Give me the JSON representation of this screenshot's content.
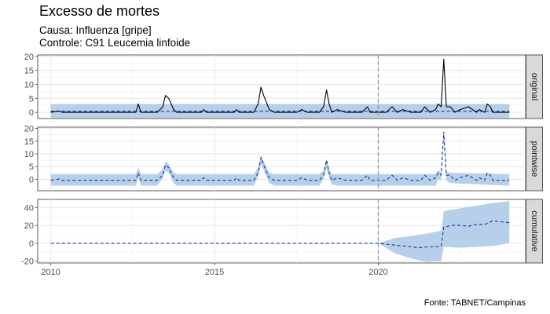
{
  "chart": {
    "title": "Excesso de mortes",
    "subtitle_line1": "Causa: Influenza [gripe]",
    "subtitle_line2": "Controle: C91 Leucemia linfoide",
    "caption": "Fonte: TABNET/Campinas"
  },
  "colors": {
    "ribbon": "#b3cde9",
    "observed": "#000000",
    "predicted": "#1c2f9e",
    "grid_major": "#e6e6e6",
    "grid_minor": "#f2f2f2",
    "strip_bg": "#d9d9d9",
    "strip_border": "#333333",
    "intervention_line": "#999999"
  },
  "chart_data": {
    "type": "line",
    "x_axis": {
      "ticks": [
        2010,
        2015,
        2020
      ],
      "range": [
        2009.6,
        2024.5
      ]
    },
    "intervention_x": 2020.0,
    "panels": [
      {
        "strip": "original",
        "y_ticks": [
          0,
          5,
          10,
          15,
          20
        ],
        "ylim": [
          -2.2,
          20.5
        ],
        "series": [
          {
            "kind": "band",
            "x": [
              2010.0,
              2024.0
            ],
            "lower": [
              -2.0,
              -2.0
            ],
            "upper": [
              3.0,
              3.0
            ]
          },
          {
            "kind": "dashed-line",
            "x": [
              2010.0,
              2024.0
            ],
            "y": [
              0.4,
              0.4
            ]
          },
          {
            "kind": "solid-line",
            "x": [
              2010.0,
              2010.25,
              2010.35,
              2010.5,
              2012.6,
              2012.67,
              2012.75,
              2013.25,
              2013.42,
              2013.5,
              2013.6,
              2013.75,
              2013.85,
              2014.0,
              2014.6,
              2014.67,
              2014.75,
              2015.0,
              2015.6,
              2015.67,
              2015.75,
              2016.2,
              2016.33,
              2016.42,
              2016.5,
              2016.67,
              2016.83,
              2017.0,
              2017.5,
              2017.67,
              2017.83,
              2018.2,
              2018.33,
              2018.42,
              2018.5,
              2018.58,
              2018.75,
              2019.0,
              2019.5,
              2019.58,
              2019.67,
              2019.75,
              2019.85,
              2020.0,
              2020.25,
              2020.33,
              2020.42,
              2020.58,
              2020.75,
              2021.0,
              2021.3,
              2021.42,
              2021.5,
              2021.58,
              2021.75,
              2021.83,
              2021.92,
              2022.0,
              2022.08,
              2022.2,
              2022.33,
              2022.5,
              2022.75,
              2023.0,
              2023.08,
              2023.25,
              2023.33,
              2023.42,
              2023.5,
              2023.58,
              2023.75,
              2024.0
            ],
            "y": [
              0,
              0.5,
              0,
              0,
              0,
              3,
              0,
              0,
              2,
              6,
              5,
              1,
              0,
              0,
              0,
              1,
              0,
              0,
              0,
              1,
              0,
              0,
              3,
              9,
              6,
              1,
              0,
              0,
              0,
              1,
              0,
              0,
              2,
              8,
              3,
              0,
              1,
              0,
              0,
              1,
              2,
              0,
              0,
              0,
              0,
              1,
              2,
              0,
              1,
              0,
              0,
              2,
              1,
              0,
              1,
              3,
              2,
              19,
              2,
              2,
              0,
              1,
              2,
              0,
              1,
              0,
              3,
              2,
              0,
              0,
              0,
              0
            ]
          }
        ]
      },
      {
        "strip": "pointwise",
        "y_ticks": [
          0,
          5,
          10,
          15,
          20
        ],
        "ylim": [
          -4.5,
          20.5
        ],
        "series": [
          {
            "kind": "band",
            "x": [
              2010.0,
              2012.6,
              2012.67,
              2012.75,
              2013.25,
              2013.42,
              2013.5,
              2013.6,
              2013.75,
              2013.85,
              2016.2,
              2016.33,
              2016.42,
              2016.5,
              2016.67,
              2016.83,
              2018.2,
              2018.33,
              2018.42,
              2018.5,
              2018.58,
              2018.75,
              2021.75,
              2021.83,
              2021.92,
              2022.0,
              2022.08,
              2022.2,
              2024.0
            ],
            "lower": [
              -2.5,
              -2.5,
              1.0,
              -2.5,
              -2.5,
              0.5,
              3.5,
              2.5,
              -1.5,
              -2.5,
              -2.5,
              1.0,
              6.0,
              3.5,
              -1.5,
              -2.5,
              -2.5,
              0.0,
              4.5,
              0.5,
              -2.0,
              -2.5,
              -2.5,
              0.0,
              -0.5,
              16.0,
              -0.5,
              -1.5,
              -2.5
            ],
            "upper": [
              2.0,
              2.0,
              4.5,
              2.0,
              2.0,
              4.0,
              7.0,
              6.0,
              2.5,
              2.0,
              2.0,
              4.5,
              9.5,
              7.0,
              2.5,
              2.0,
              2.0,
              3.5,
              8.0,
              4.0,
              2.0,
              2.0,
              2.0,
              3.5,
              3.0,
              19.5,
              3.0,
              2.5,
              2.0
            ]
          },
          {
            "kind": "dashed-line",
            "x": [
              2010.0,
              2010.25,
              2010.35,
              2010.5,
              2012.6,
              2012.67,
              2012.75,
              2013.25,
              2013.42,
              2013.5,
              2013.6,
              2013.75,
              2013.85,
              2014.0,
              2014.6,
              2014.67,
              2014.75,
              2015.0,
              2015.6,
              2015.67,
              2015.75,
              2016.2,
              2016.33,
              2016.42,
              2016.5,
              2016.67,
              2016.83,
              2017.0,
              2017.5,
              2017.67,
              2017.83,
              2018.2,
              2018.33,
              2018.42,
              2018.5,
              2018.58,
              2018.75,
              2019.0,
              2019.5,
              2019.58,
              2019.67,
              2019.75,
              2019.85,
              2020.0,
              2020.25,
              2020.33,
              2020.42,
              2020.58,
              2020.75,
              2021.0,
              2021.3,
              2021.42,
              2021.5,
              2021.58,
              2021.75,
              2021.83,
              2021.92,
              2022.0,
              2022.08,
              2022.2,
              2022.33,
              2022.5,
              2022.75,
              2023.0,
              2023.08,
              2023.25,
              2023.33,
              2023.42,
              2023.5,
              2023.58,
              2023.75,
              2024.0
            ],
            "y": [
              -0.4,
              0.1,
              -0.4,
              -0.4,
              -0.4,
              2.6,
              -0.4,
              -0.4,
              1.6,
              5.6,
              4.6,
              0.6,
              -0.4,
              -0.4,
              -0.4,
              0.6,
              -0.4,
              -0.4,
              -0.4,
              0.6,
              -0.4,
              -0.4,
              2.6,
              8.6,
              5.6,
              0.6,
              -0.4,
              -0.4,
              -0.4,
              0.6,
              -0.4,
              -0.4,
              1.6,
              7.6,
              2.6,
              -0.4,
              0.6,
              -0.4,
              -0.4,
              0.6,
              1.6,
              -0.4,
              -0.4,
              -0.4,
              -0.4,
              0.6,
              1.6,
              -0.4,
              0.6,
              -0.4,
              -0.4,
              1.6,
              0.6,
              -0.4,
              0.6,
              2.6,
              1.6,
              18.6,
              1.6,
              1.6,
              -0.4,
              0.6,
              1.6,
              -0.4,
              0.6,
              -0.4,
              2.6,
              1.6,
              -0.4,
              -0.4,
              -0.4,
              -0.4
            ]
          }
        ]
      },
      {
        "strip": "cumulative",
        "y_ticks": [
          -20,
          0,
          20,
          40
        ],
        "ylim": [
          -22,
          49
        ],
        "series": [
          {
            "kind": "band",
            "x": [
              2010.0,
              2020.0,
              2020.5,
              2021.0,
              2021.5,
              2021.92,
              2022.0,
              2022.5,
              2023.0,
              2023.5,
              2024.0
            ],
            "lower": [
              0.0,
              0.0,
              -11.0,
              -17.0,
              -21.0,
              -20.0,
              -4.0,
              -5.0,
              -4.0,
              -3.0,
              0.0
            ],
            "upper": [
              0.0,
              0.0,
              6.0,
              8.0,
              11.0,
              14.0,
              36.0,
              39.0,
              42.0,
              45.0,
              47.0
            ]
          },
          {
            "kind": "dashed-line",
            "x": [
              2010.0,
              2020.0,
              2020.25,
              2020.5,
              2020.75,
              2021.0,
              2021.25,
              2021.5,
              2021.75,
              2021.92,
              2022.0,
              2022.25,
              2022.5,
              2022.75,
              2023.0,
              2023.25,
              2023.5,
              2023.75,
              2024.0
            ],
            "y": [
              0,
              0,
              -1,
              -2,
              -3,
              -4,
              -5,
              -4,
              -4,
              -3,
              18,
              20,
              20,
              19,
              21,
              21,
              25,
              24,
              23
            ]
          }
        ]
      }
    ]
  }
}
